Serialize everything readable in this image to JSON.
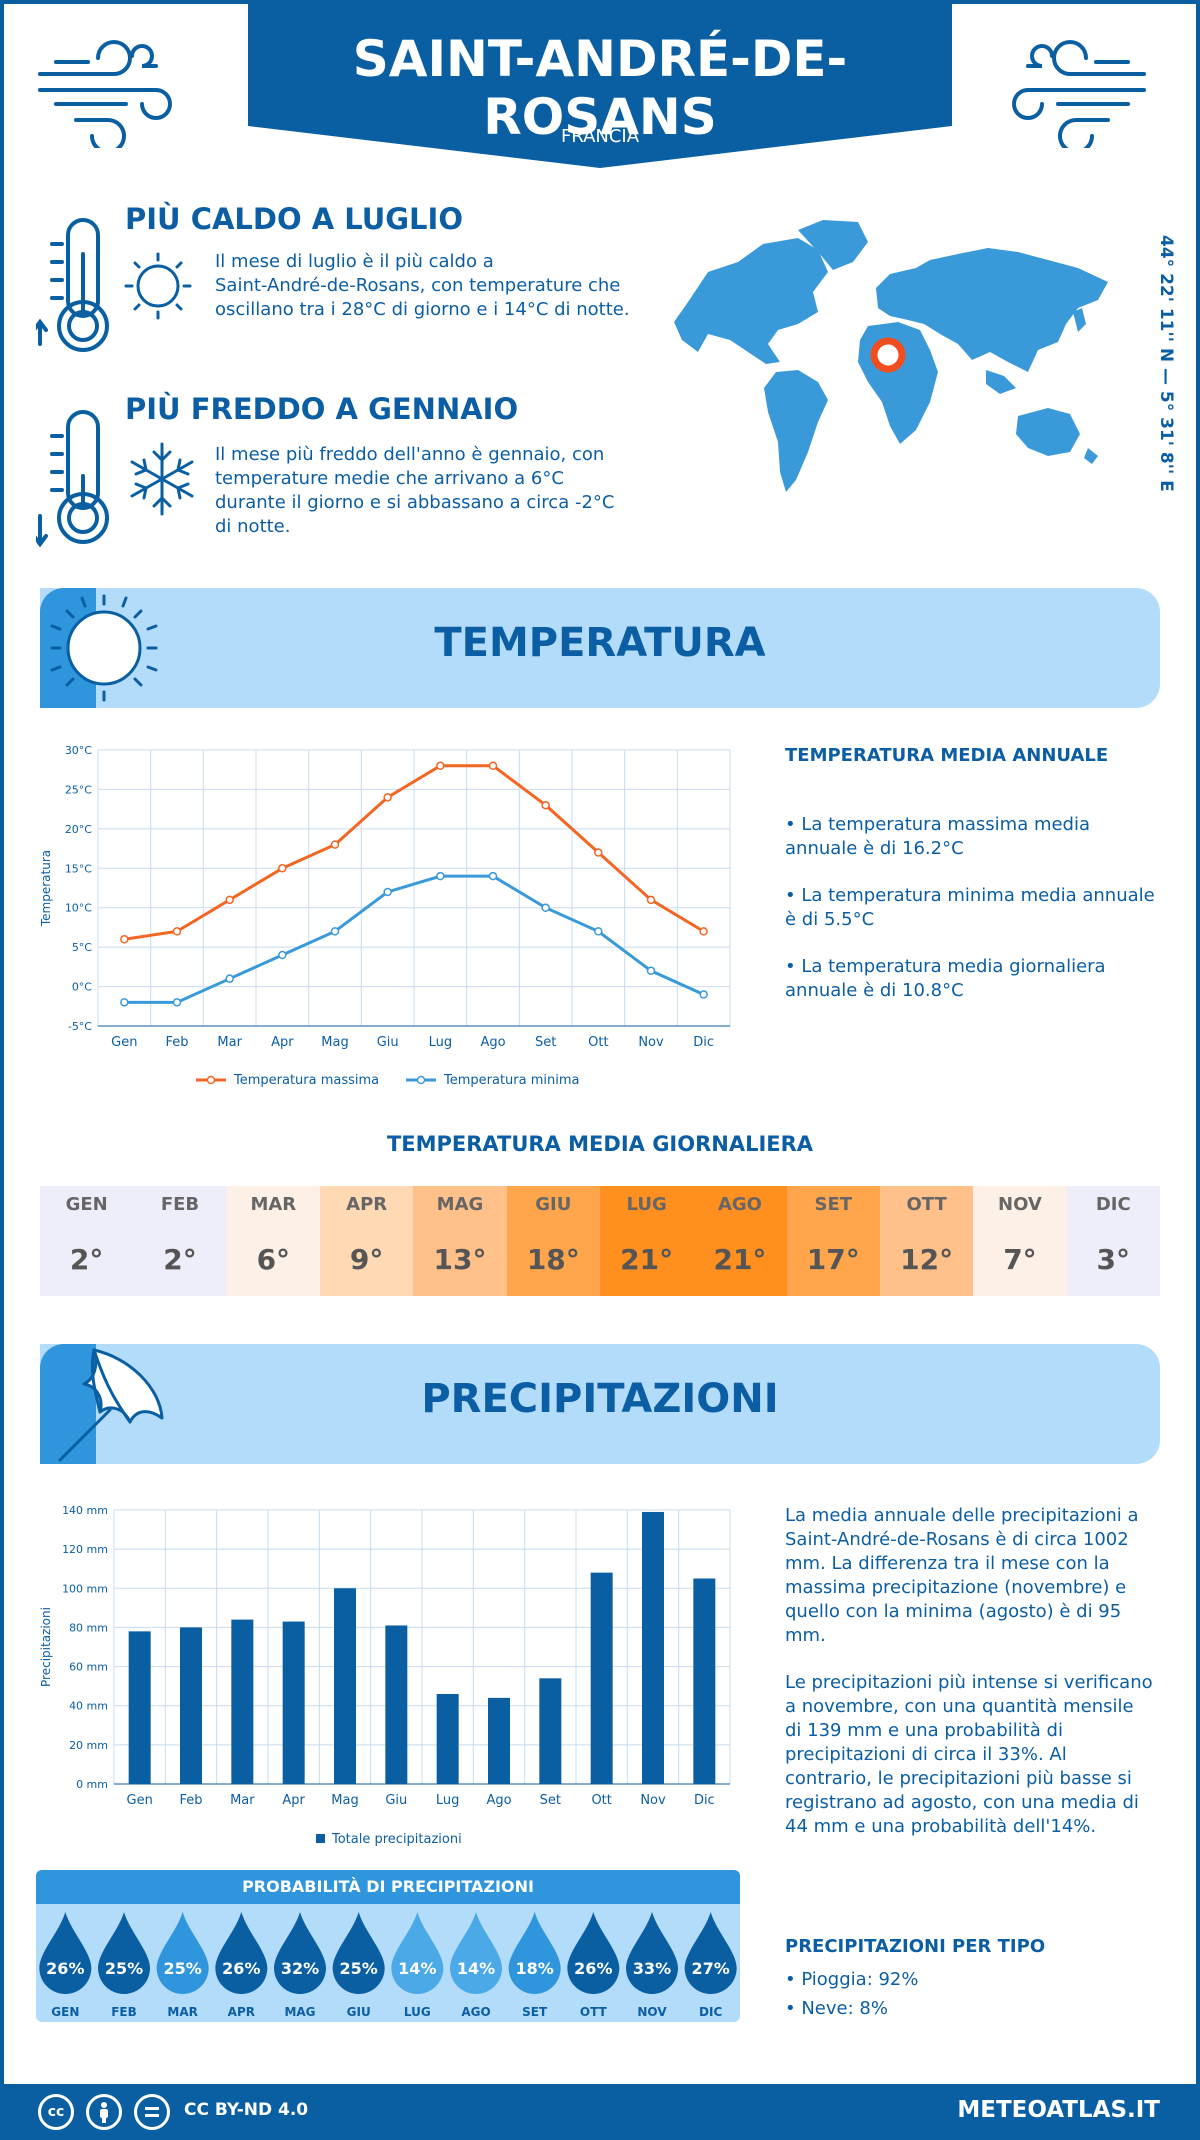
{
  "header": {
    "title": "SAINT-ANDRÉ-DE-ROSANS",
    "country": "FRANCIA"
  },
  "facts": {
    "hottest": {
      "title": "PIÙ CALDO A LUGLIO",
      "lines": [
        "Il mese di luglio è il più caldo a",
        "Saint-André-de-Rosans, con temperature che",
        "oscillano tra i 28°C di giorno e i 14°C di notte."
      ]
    },
    "coldest": {
      "title": "PIÙ FREDDO A GENNAIO",
      "lines": [
        "Il mese più freddo dell'anno è gennaio, con",
        "temperature medie che arrivano a 6°C",
        "durante il giorno e si abbassano a circa -2°C",
        "di notte."
      ]
    }
  },
  "coordinates": "44° 22' 11'' N — 5° 31' 8'' E",
  "temperature_section": {
    "title": "TEMPERATURA",
    "side_heading": "TEMPERATURA MEDIA ANNUALE",
    "bullets": [
      [
        "• La temperatura massima media",
        "annuale è di 16.2°C"
      ],
      [
        "• La temperatura minima media annuale",
        "è di 5.5°C"
      ],
      [
        "• La temperatura media giornaliera",
        "annuale è di 10.8°C"
      ]
    ]
  },
  "daily_section": {
    "title": "TEMPERATURA MEDIA GIORNALIERA",
    "cells": [
      {
        "month": "GEN",
        "value": "2°",
        "color": "#eeeefa"
      },
      {
        "month": "FEB",
        "value": "2°",
        "color": "#eeeefa"
      },
      {
        "month": "MAR",
        "value": "6°",
        "color": "#fdf0e6"
      },
      {
        "month": "APR",
        "value": "9°",
        "color": "#ffd9b3"
      },
      {
        "month": "MAG",
        "value": "13°",
        "color": "#ffc08a"
      },
      {
        "month": "GIU",
        "value": "18°",
        "color": "#ffa64d"
      },
      {
        "month": "LUG",
        "value": "21°",
        "color": "#ff8f1f"
      },
      {
        "month": "AGO",
        "value": "21°",
        "color": "#ff8f1f"
      },
      {
        "month": "SET",
        "value": "17°",
        "color": "#ffa64d"
      },
      {
        "month": "OTT",
        "value": "12°",
        "color": "#ffc08a"
      },
      {
        "month": "NOV",
        "value": "7°",
        "color": "#fdf0e6"
      },
      {
        "month": "DIC",
        "value": "3°",
        "color": "#eeeefa"
      }
    ]
  },
  "precip_section": {
    "title": "PRECIPITAZIONI",
    "text1": [
      "La media annuale delle precipitazioni a",
      "Saint-André-de-Rosans è di circa 1002",
      "mm. La differenza tra il mese con la",
      "massima precipitazione (novembre) e",
      "quello con la minima (agosto) è di 95",
      "mm."
    ],
    "text2": [
      "Le precipitazioni più intense si verificano",
      "a novembre, con una quantità mensile",
      "di 139 mm e una probabilità di",
      "precipitazioni di circa il 33%. Al",
      "contrario, le precipitazioni più basse si",
      "registrano ad agosto, con una media di",
      "44 mm e una probabilità dell'14%."
    ],
    "type_heading": "PRECIPITAZIONI PER TIPO",
    "types": [
      "• Pioggia: 92%",
      "• Neve: 8%"
    ]
  },
  "probability": {
    "title": "PROBABILITÀ DI PRECIPITAZIONI",
    "items": [
      {
        "month": "GEN",
        "value": "26%",
        "color": "#0a5fa3"
      },
      {
        "month": "FEB",
        "value": "25%",
        "color": "#0a5fa3"
      },
      {
        "month": "MAR",
        "value": "25%",
        "color": "#2f95dc"
      },
      {
        "month": "APR",
        "value": "26%",
        "color": "#0a5fa3"
      },
      {
        "month": "MAG",
        "value": "32%",
        "color": "#0a5fa3"
      },
      {
        "month": "GIU",
        "value": "25%",
        "color": "#0a5fa3"
      },
      {
        "month": "LUG",
        "value": "14%",
        "color": "#4aa9e6"
      },
      {
        "month": "AGO",
        "value": "14%",
        "color": "#4aa9e6"
      },
      {
        "month": "SET",
        "value": "18%",
        "color": "#2f95dc"
      },
      {
        "month": "OTT",
        "value": "26%",
        "color": "#0a5fa3"
      },
      {
        "month": "NOV",
        "value": "33%",
        "color": "#0a5fa3"
      },
      {
        "month": "DIC",
        "value": "27%",
        "color": "#0a5fa3"
      }
    ]
  },
  "footer": {
    "license": "CC BY-ND 4.0",
    "site": "METEOATLAS.IT",
    "icons": [
      "cc-icon",
      "by-icon",
      "nd-icon"
    ]
  },
  "colors": {
    "primary": "#0a5fa3",
    "banner": "#b3dcfa",
    "max_line": "#f26522",
    "min_line": "#3a9ad9"
  },
  "chart_data": [
    {
      "type": "line",
      "categories": [
        "Gen",
        "Feb",
        "Mar",
        "Apr",
        "Mag",
        "Giu",
        "Lug",
        "Ago",
        "Set",
        "Ott",
        "Nov",
        "Dic"
      ],
      "series": [
        {
          "name": "Temperatura massima",
          "values": [
            6,
            7,
            11,
            15,
            18,
            24,
            28,
            28,
            23,
            17,
            11,
            7
          ]
        },
        {
          "name": "Temperatura minima",
          "values": [
            -2,
            -2,
            1,
            4,
            7,
            12,
            14,
            14,
            10,
            7,
            2,
            -1
          ]
        }
      ],
      "ylabel": "Temperatura",
      "ylim": [
        -5,
        30
      ],
      "yticks": [
        "-5°C",
        "0°C",
        "5°C",
        "10°C",
        "15°C",
        "20°C",
        "25°C",
        "30°C"
      ],
      "grid": true,
      "legend": "bottom"
    },
    {
      "type": "bar",
      "categories": [
        "Gen",
        "Feb",
        "Mar",
        "Apr",
        "Mag",
        "Giu",
        "Lug",
        "Ago",
        "Set",
        "Ott",
        "Nov",
        "Dic"
      ],
      "series": [
        {
          "name": "Totale precipitazioni",
          "values": [
            78,
            80,
            84,
            83,
            100,
            81,
            46,
            44,
            54,
            108,
            139,
            105
          ]
        }
      ],
      "ylabel": "Precipitazioni",
      "ylim": [
        0,
        140
      ],
      "yticks": [
        "0 mm",
        "20 mm",
        "40 mm",
        "60 mm",
        "80 mm",
        "100 mm",
        "120 mm",
        "140 mm"
      ],
      "grid": true,
      "legend": "bottom"
    }
  ]
}
